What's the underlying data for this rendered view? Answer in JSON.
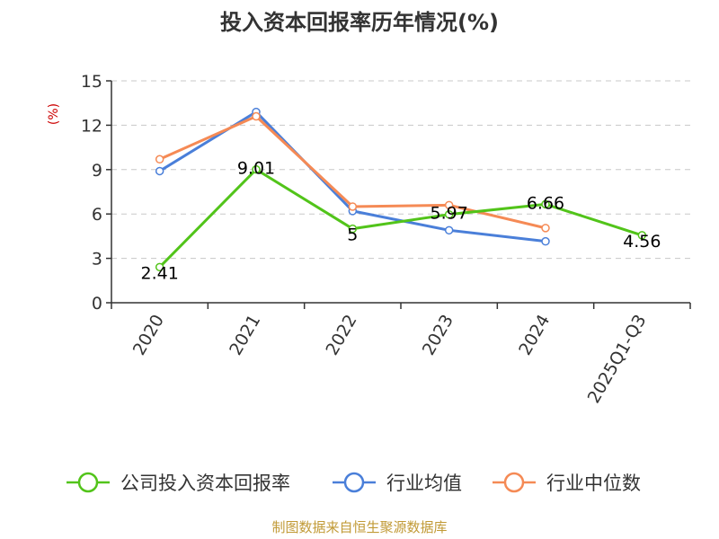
{
  "chart_data": {
    "type": "line",
    "title": "投入资本回报率历年情况(%)",
    "ylabel": "(%)",
    "xlabel": "",
    "categories": [
      "2020",
      "2021",
      "2022",
      "2023",
      "2024",
      "2025Q1-Q3"
    ],
    "ylim": [
      0,
      15
    ],
    "yticks": [
      "0",
      "3",
      "6",
      "9",
      "12",
      "15"
    ],
    "grid": true,
    "legend_position": "bottom",
    "series": [
      {
        "name": "公司投入资本回报率",
        "color": "#52c41a",
        "values": [
          2.41,
          9.01,
          5.0,
          5.97,
          6.66,
          4.56
        ],
        "labels": [
          "2.41",
          "9.01",
          "5",
          "5.97",
          "6.66",
          "4.56"
        ]
      },
      {
        "name": "行业均值",
        "color": "#4a7fd9",
        "values": [
          8.9,
          12.9,
          6.2,
          4.9,
          4.15,
          null
        ]
      },
      {
        "name": "行业中位数",
        "color": "#f58a55",
        "values": [
          9.7,
          12.6,
          6.5,
          6.6,
          5.05,
          null
        ]
      }
    ]
  },
  "source": "制图数据来自恒生聚源数据库"
}
